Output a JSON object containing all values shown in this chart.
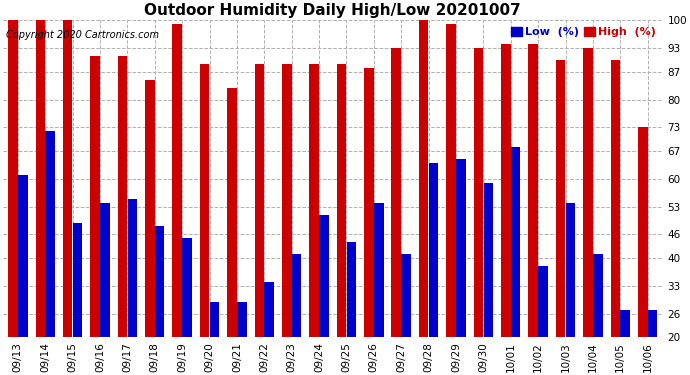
{
  "title": "Outdoor Humidity Daily High/Low 20201007",
  "copyright": "Copyright 2020 Cartronics.com",
  "legend_low": "Low  (%)",
  "legend_high": "High  (%)",
  "categories": [
    "09/13",
    "09/14",
    "09/15",
    "09/16",
    "09/17",
    "09/18",
    "09/19",
    "09/20",
    "09/21",
    "09/22",
    "09/23",
    "09/24",
    "09/25",
    "09/26",
    "09/27",
    "09/28",
    "09/29",
    "09/30",
    "10/01",
    "10/02",
    "10/03",
    "10/04",
    "10/05",
    "10/06"
  ],
  "high_values": [
    100,
    100,
    100,
    91,
    91,
    85,
    99,
    89,
    83,
    89,
    89,
    89,
    89,
    88,
    93,
    100,
    99,
    93,
    94,
    94,
    90,
    93,
    90,
    73
  ],
  "low_values": [
    61,
    72,
    49,
    54,
    55,
    48,
    45,
    29,
    29,
    34,
    41,
    51,
    44,
    54,
    41,
    64,
    65,
    59,
    68,
    38,
    54,
    41,
    27,
    27
  ],
  "ylim_min": 20,
  "ylim_max": 100,
  "yticks": [
    20,
    26,
    33,
    40,
    46,
    53,
    60,
    67,
    73,
    80,
    87,
    93,
    100
  ],
  "bar_color_high": "#cc0000",
  "bar_color_low": "#0000cc",
  "background_color": "#ffffff",
  "grid_color": "#b0b0b0",
  "title_fontsize": 11,
  "tick_fontsize": 7.5,
  "copyright_fontsize": 7,
  "legend_fontsize": 8,
  "bar_width": 0.35,
  "bar_gap": 0.01
}
